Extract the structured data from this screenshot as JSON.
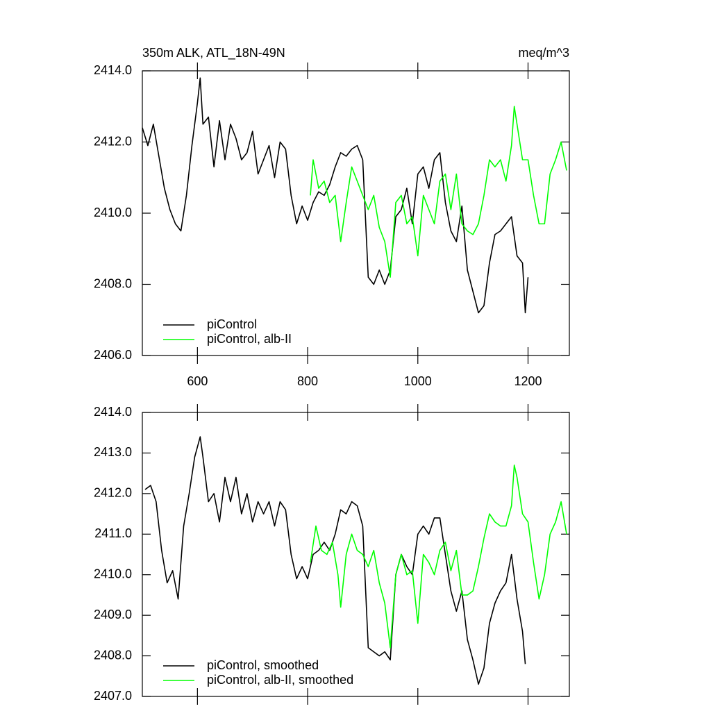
{
  "chart_data": [
    {
      "type": "line",
      "title": "350m ALK, ATL_18N-49N",
      "units": "meq/m^3",
      "xlim": [
        500,
        1275
      ],
      "xticks": [
        600,
        800,
        1000,
        1200
      ],
      "xtick_labels": true,
      "ylim": [
        2406,
        2414
      ],
      "yticks": [
        {
          "value": 2406,
          "label": "2406.0"
        },
        {
          "value": 2408,
          "label": "2408.0"
        },
        {
          "value": 2410,
          "label": "2410.0"
        },
        {
          "value": 2412,
          "label": "2412.0"
        },
        {
          "value": 2414,
          "label": "2414.0"
        }
      ],
      "legend": "lower left",
      "series": [
        {
          "name": "piControl",
          "color": "#000000",
          "x": [
            500,
            510,
            520,
            530,
            540,
            550,
            560,
            570,
            580,
            590,
            600,
            605,
            610,
            620,
            630,
            640,
            650,
            660,
            670,
            680,
            690,
            700,
            710,
            720,
            730,
            740,
            750,
            760,
            770,
            780,
            790,
            800,
            810,
            820,
            830,
            840,
            850,
            860,
            870,
            880,
            890,
            900,
            910,
            920,
            930,
            940,
            950,
            960,
            970,
            980,
            990,
            1000,
            1010,
            1020,
            1030,
            1040,
            1050,
            1060,
            1070,
            1080,
            1090,
            1100,
            1110,
            1120,
            1130,
            1140,
            1150,
            1160,
            1170,
            1180,
            1190,
            1195,
            1200
          ],
          "values": [
            2412.4,
            2411.9,
            2412.5,
            2411.6,
            2410.7,
            2410.1,
            2409.7,
            2409.5,
            2410.5,
            2411.9,
            2413.1,
            2413.8,
            2412.5,
            2412.7,
            2411.3,
            2412.6,
            2411.5,
            2412.5,
            2412.1,
            2411.5,
            2411.7,
            2412.3,
            2411.1,
            2411.5,
            2411.9,
            2411.0,
            2412.0,
            2411.8,
            2410.5,
            2409.7,
            2410.2,
            2409.8,
            2410.3,
            2410.6,
            2410.5,
            2410.8,
            2411.3,
            2411.7,
            2411.6,
            2411.8,
            2411.9,
            2411.5,
            2408.2,
            2408.0,
            2408.4,
            2408.0,
            2408.4,
            2409.9,
            2410.1,
            2410.7,
            2409.7,
            2411.1,
            2411.3,
            2410.7,
            2411.5,
            2411.7,
            2410.3,
            2409.5,
            2409.2,
            2410.2,
            2408.4,
            2407.8,
            2407.2,
            2407.4,
            2408.6,
            2409.4,
            2409.5,
            2409.7,
            2409.9,
            2408.8,
            2408.6,
            2407.2,
            2408.2
          ]
        },
        {
          "name": "piControl, alb-II",
          "color": "#00ff00",
          "x": [
            805,
            810,
            820,
            830,
            840,
            850,
            860,
            870,
            880,
            890,
            900,
            910,
            920,
            930,
            940,
            950,
            960,
            970,
            980,
            990,
            1000,
            1010,
            1020,
            1030,
            1040,
            1050,
            1060,
            1070,
            1080,
            1090,
            1100,
            1110,
            1120,
            1130,
            1140,
            1150,
            1160,
            1170,
            1175,
            1180,
            1190,
            1200,
            1210,
            1220,
            1230,
            1240,
            1250,
            1260,
            1270
          ],
          "values": [
            2410.5,
            2411.5,
            2410.7,
            2410.9,
            2410.3,
            2410.5,
            2409.2,
            2410.3,
            2411.3,
            2410.9,
            2410.5,
            2410.1,
            2410.5,
            2409.6,
            2409.2,
            2408.2,
            2410.3,
            2410.5,
            2409.7,
            2409.9,
            2408.8,
            2410.5,
            2410.1,
            2409.7,
            2410.9,
            2411.1,
            2410.1,
            2411.1,
            2409.7,
            2409.5,
            2409.4,
            2409.7,
            2410.5,
            2411.5,
            2411.3,
            2411.5,
            2410.9,
            2411.9,
            2413.0,
            2412.5,
            2411.5,
            2411.5,
            2410.5,
            2409.7,
            2409.7,
            2411.1,
            2411.5,
            2412.0,
            2411.2
          ]
        }
      ]
    },
    {
      "type": "line",
      "xlim": [
        500,
        1275
      ],
      "xticks": [
        600,
        800,
        1000,
        1200
      ],
      "xtick_labels": false,
      "ylim": [
        2407,
        2414
      ],
      "yticks": [
        {
          "value": 2407,
          "label": "2407.0"
        },
        {
          "value": 2408,
          "label": "2408.0"
        },
        {
          "value": 2409,
          "label": "2409.0"
        },
        {
          "value": 2410,
          "label": "2410.0"
        },
        {
          "value": 2411,
          "label": "2411.0"
        },
        {
          "value": 2412,
          "label": "2412.0"
        },
        {
          "value": 2413,
          "label": "2413.0"
        },
        {
          "value": 2414,
          "label": "2414.0"
        }
      ],
      "legend": "lower left",
      "series": [
        {
          "name": "piControl, smoothed",
          "color": "#000000",
          "x": [
            505,
            515,
            525,
            535,
            545,
            555,
            565,
            575,
            585,
            595,
            605,
            610,
            620,
            630,
            640,
            650,
            660,
            670,
            680,
            690,
            700,
            710,
            720,
            730,
            740,
            750,
            760,
            770,
            780,
            790,
            800,
            810,
            820,
            830,
            840,
            850,
            860,
            870,
            880,
            890,
            900,
            910,
            920,
            930,
            940,
            950,
            960,
            970,
            980,
            990,
            1000,
            1010,
            1020,
            1030,
            1040,
            1050,
            1060,
            1070,
            1080,
            1090,
            1100,
            1110,
            1120,
            1130,
            1140,
            1150,
            1160,
            1170,
            1180,
            1190,
            1195
          ],
          "values": [
            2412.1,
            2412.2,
            2411.8,
            2410.6,
            2409.8,
            2410.1,
            2409.4,
            2411.2,
            2412.0,
            2412.9,
            2413.4,
            2412.9,
            2411.8,
            2412.0,
            2411.3,
            2412.4,
            2411.8,
            2412.4,
            2411.5,
            2412.0,
            2411.3,
            2411.8,
            2411.5,
            2411.8,
            2411.2,
            2411.8,
            2411.6,
            2410.5,
            2409.9,
            2410.2,
            2409.9,
            2410.5,
            2410.6,
            2410.8,
            2410.6,
            2411.0,
            2411.6,
            2411.5,
            2411.8,
            2411.7,
            2411.2,
            2408.2,
            2408.1,
            2408.0,
            2408.1,
            2407.9,
            2410.0,
            2410.5,
            2410.2,
            2410.0,
            2411.0,
            2411.2,
            2411.0,
            2411.4,
            2411.4,
            2410.5,
            2409.6,
            2409.1,
            2409.6,
            2408.4,
            2407.9,
            2407.3,
            2407.7,
            2408.8,
            2409.3,
            2409.6,
            2409.8,
            2410.5,
            2409.4,
            2408.6,
            2407.8
          ]
        },
        {
          "name": "piControl, alb-II, smoothed",
          "color": "#00ff00",
          "x": [
            805,
            815,
            825,
            835,
            845,
            855,
            860,
            870,
            880,
            890,
            900,
            910,
            920,
            930,
            940,
            950,
            960,
            970,
            980,
            990,
            1000,
            1010,
            1020,
            1030,
            1040,
            1050,
            1060,
            1070,
            1080,
            1090,
            1100,
            1110,
            1120,
            1130,
            1140,
            1150,
            1160,
            1170,
            1175,
            1180,
            1190,
            1200,
            1210,
            1220,
            1230,
            1240,
            1250,
            1260,
            1270
          ],
          "values": [
            2410.3,
            2411.2,
            2410.6,
            2410.5,
            2410.8,
            2410.0,
            2409.2,
            2410.5,
            2411.0,
            2410.6,
            2410.5,
            2410.2,
            2410.6,
            2409.8,
            2409.3,
            2408.2,
            2410.0,
            2410.5,
            2410.0,
            2410.1,
            2408.8,
            2410.5,
            2410.3,
            2410.0,
            2410.6,
            2410.8,
            2410.1,
            2410.6,
            2409.5,
            2409.5,
            2409.6,
            2410.2,
            2410.9,
            2411.5,
            2411.3,
            2411.2,
            2411.2,
            2411.7,
            2412.7,
            2412.4,
            2411.5,
            2411.3,
            2410.3,
            2409.4,
            2410.0,
            2411.0,
            2411.3,
            2411.8,
            2411.0
          ]
        }
      ]
    }
  ]
}
